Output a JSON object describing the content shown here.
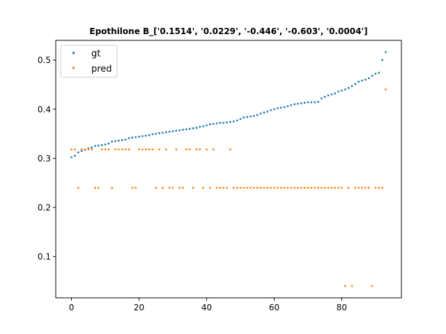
{
  "chart_data": {
    "type": "scatter",
    "title": "Epothilone B_['0.1514', '0.0229', '-0.446', '-0.603', '0.0004']",
    "xlabel": "",
    "ylabel": "",
    "xlim": [
      -4.65,
      97.65
    ],
    "ylim": [
      0.016,
      0.54
    ],
    "grid": false,
    "legend_position": "upper-left",
    "x_ticks": [
      0,
      20,
      40,
      60,
      80
    ],
    "x_tick_labels": [
      "0",
      "20",
      "40",
      "60",
      "80"
    ],
    "y_ticks": [
      0.1,
      0.2,
      0.3,
      0.4,
      0.5
    ],
    "y_tick_labels": [
      "0.1",
      "0.2",
      "0.3",
      "0.4",
      "0.5"
    ],
    "series": [
      {
        "name": "gt",
        "color": "#1f77b4",
        "x": [
          0,
          1,
          2,
          3,
          4,
          5,
          6,
          7,
          8,
          9,
          10,
          11,
          12,
          13,
          14,
          15,
          16,
          17,
          18,
          19,
          20,
          21,
          22,
          23,
          24,
          25,
          26,
          27,
          28,
          29,
          30,
          31,
          32,
          33,
          34,
          35,
          36,
          37,
          38,
          39,
          40,
          41,
          42,
          43,
          44,
          45,
          46,
          47,
          48,
          49,
          50,
          51,
          52,
          53,
          54,
          55,
          56,
          57,
          58,
          59,
          60,
          61,
          62,
          63,
          64,
          65,
          66,
          67,
          68,
          69,
          70,
          71,
          72,
          73,
          74,
          75,
          76,
          77,
          78,
          79,
          80,
          81,
          82,
          83,
          84,
          85,
          86,
          87,
          88,
          89,
          90,
          91,
          92,
          93
        ],
        "y": [
          0.302,
          0.305,
          0.312,
          0.315,
          0.317,
          0.32,
          0.322,
          0.325,
          0.326,
          0.327,
          0.328,
          0.33,
          0.334,
          0.335,
          0.336,
          0.337,
          0.338,
          0.341,
          0.342,
          0.343,
          0.344,
          0.345,
          0.346,
          0.347,
          0.349,
          0.35,
          0.351,
          0.352,
          0.353,
          0.354,
          0.355,
          0.356,
          0.357,
          0.358,
          0.359,
          0.36,
          0.361,
          0.362,
          0.364,
          0.365,
          0.367,
          0.369,
          0.37,
          0.371,
          0.372,
          0.372,
          0.373,
          0.374,
          0.375,
          0.377,
          0.38,
          0.383,
          0.384,
          0.385,
          0.386,
          0.388,
          0.391,
          0.393,
          0.395,
          0.398,
          0.4,
          0.402,
          0.403,
          0.404,
          0.406,
          0.408,
          0.41,
          0.411,
          0.412,
          0.413,
          0.414,
          0.414,
          0.414,
          0.415,
          0.422,
          0.425,
          0.428,
          0.43,
          0.432,
          0.436,
          0.438,
          0.44,
          0.443,
          0.447,
          0.451,
          0.456,
          0.458,
          0.46,
          0.463,
          0.468,
          0.472,
          0.474,
          0.5,
          0.516
        ]
      },
      {
        "name": "pred",
        "color": "#ff7f0e",
        "x": [
          0,
          1,
          2,
          3,
          4,
          5,
          6,
          7,
          8,
          9,
          10,
          11,
          12,
          13,
          14,
          15,
          16,
          17,
          18,
          19,
          20,
          21,
          22,
          23,
          24,
          25,
          26,
          27,
          28,
          29,
          30,
          31,
          32,
          33,
          34,
          35,
          36,
          37,
          38,
          39,
          40,
          41,
          42,
          43,
          44,
          45,
          46,
          47,
          48,
          49,
          50,
          51,
          52,
          53,
          54,
          55,
          56,
          57,
          58,
          59,
          60,
          61,
          62,
          63,
          64,
          65,
          66,
          67,
          68,
          69,
          70,
          71,
          72,
          73,
          74,
          75,
          76,
          77,
          78,
          79,
          80,
          81,
          82,
          83,
          84,
          85,
          86,
          87,
          88,
          89,
          90,
          91,
          92,
          93
        ],
        "y": [
          0.318,
          0.318,
          0.24,
          0.318,
          0.318,
          0.318,
          0.318,
          0.24,
          0.24,
          0.318,
          0.318,
          0.318,
          0.24,
          0.318,
          0.318,
          0.318,
          0.318,
          0.318,
          0.24,
          0.24,
          0.318,
          0.318,
          0.318,
          0.318,
          0.318,
          0.24,
          0.318,
          0.24,
          0.318,
          0.24,
          0.24,
          0.318,
          0.24,
          0.24,
          0.318,
          0.318,
          0.24,
          0.318,
          0.318,
          0.24,
          0.318,
          0.24,
          0.318,
          0.24,
          0.24,
          0.24,
          0.24,
          0.318,
          0.24,
          0.24,
          0.24,
          0.24,
          0.24,
          0.24,
          0.24,
          0.24,
          0.24,
          0.24,
          0.24,
          0.24,
          0.24,
          0.24,
          0.24,
          0.24,
          0.24,
          0.24,
          0.24,
          0.24,
          0.24,
          0.24,
          0.24,
          0.24,
          0.24,
          0.24,
          0.24,
          0.24,
          0.24,
          0.24,
          0.24,
          0.24,
          0.24,
          0.04,
          0.24,
          0.04,
          0.24,
          0.24,
          0.24,
          0.24,
          0.24,
          0.04,
          0.24,
          0.24,
          0.24,
          0.44
        ]
      }
    ]
  }
}
